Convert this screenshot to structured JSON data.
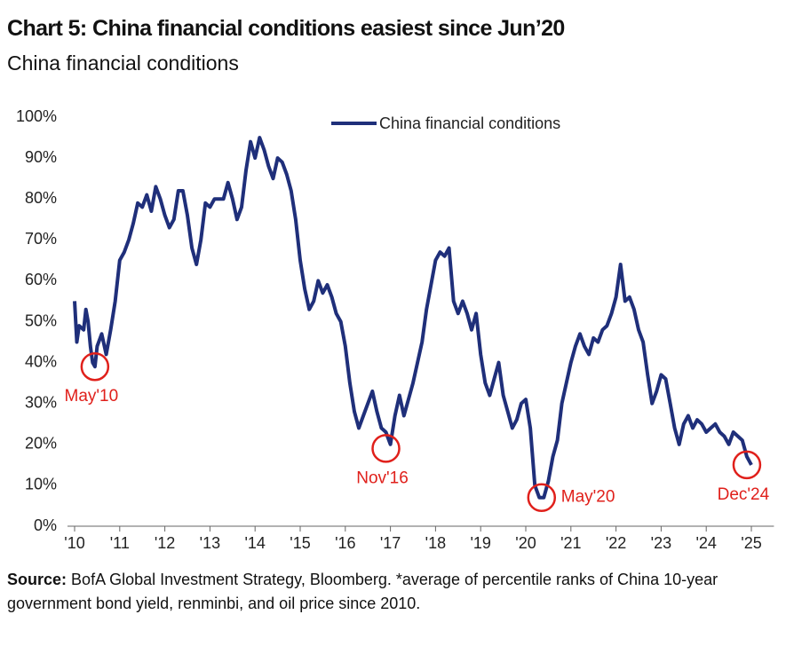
{
  "chart_data": {
    "type": "line",
    "title": "Chart 5: China financial conditions easiest since Jun’20",
    "subtitle": "China financial conditions",
    "x": [
      2010.0,
      2010.05,
      2010.1,
      2010.2,
      2010.25,
      2010.3,
      2010.35,
      2010.4,
      2010.45,
      2010.5,
      2010.6,
      2010.7,
      2010.8,
      2010.9,
      2011.0,
      2011.1,
      2011.2,
      2011.3,
      2011.4,
      2011.5,
      2011.6,
      2011.7,
      2011.8,
      2011.9,
      2012.0,
      2012.1,
      2012.2,
      2012.3,
      2012.4,
      2012.5,
      2012.6,
      2012.7,
      2012.8,
      2012.9,
      2013.0,
      2013.1,
      2013.3,
      2013.4,
      2013.5,
      2013.6,
      2013.7,
      2013.8,
      2013.9,
      2014.0,
      2014.1,
      2014.2,
      2014.3,
      2014.4,
      2014.5,
      2014.6,
      2014.7,
      2014.8,
      2014.9,
      2015.0,
      2015.1,
      2015.2,
      2015.3,
      2015.4,
      2015.5,
      2015.6,
      2015.7,
      2015.8,
      2015.9,
      2016.0,
      2016.1,
      2016.2,
      2016.3,
      2016.4,
      2016.5,
      2016.6,
      2016.7,
      2016.8,
      2016.9,
      2017.0,
      2017.1,
      2017.2,
      2017.3,
      2017.4,
      2017.5,
      2017.6,
      2017.7,
      2017.8,
      2017.9,
      2018.0,
      2018.1,
      2018.2,
      2018.3,
      2018.4,
      2018.5,
      2018.6,
      2018.7,
      2018.8,
      2018.9,
      2019.0,
      2019.1,
      2019.2,
      2019.3,
      2019.4,
      2019.5,
      2019.6,
      2019.7,
      2019.8,
      2019.9,
      2020.0,
      2020.1,
      2020.2,
      2020.3,
      2020.4,
      2020.5,
      2020.6,
      2020.7,
      2020.8,
      2020.9,
      2021.0,
      2021.1,
      2021.2,
      2021.3,
      2021.4,
      2021.5,
      2021.6,
      2021.7,
      2021.8,
      2021.9,
      2022.0,
      2022.1,
      2022.2,
      2022.3,
      2022.4,
      2022.5,
      2022.6,
      2022.7,
      2022.8,
      2022.9,
      2023.0,
      2023.1,
      2023.2,
      2023.3,
      2023.4,
      2023.5,
      2023.6,
      2023.7,
      2023.8,
      2023.9,
      2024.0,
      2024.1,
      2024.2,
      2024.3,
      2024.4,
      2024.5,
      2024.6,
      2024.7,
      2024.8,
      2024.9,
      2025.0
    ],
    "series": [
      {
        "name": "China financial conditions",
        "color": "#1f2f7a",
        "values": [
          55,
          45,
          49,
          48,
          53,
          50,
          44,
          40,
          39,
          44,
          47,
          42,
          48,
          55,
          65,
          67,
          70,
          74,
          79,
          78,
          81,
          77,
          83,
          80,
          76,
          73,
          75,
          82,
          82,
          76,
          68,
          64,
          70,
          79,
          78,
          80,
          80,
          84,
          80,
          75,
          78,
          87,
          94,
          90,
          95,
          92,
          88,
          85,
          90,
          89,
          86,
          82,
          75,
          65,
          58,
          53,
          55,
          60,
          57,
          59,
          56,
          52,
          50,
          44,
          35,
          28,
          24,
          27,
          30,
          33,
          28,
          24,
          23,
          20,
          27,
          32,
          27,
          31,
          35,
          40,
          45,
          53,
          59,
          65,
          67,
          66,
          68,
          55,
          52,
          55,
          52,
          48,
          52,
          42,
          35,
          32,
          36,
          40,
          32,
          28,
          24,
          26,
          30,
          31,
          24,
          10,
          7,
          7,
          11,
          17,
          21,
          30,
          35,
          40,
          44,
          47,
          44,
          42,
          46,
          45,
          48,
          49,
          52,
          56,
          64,
          55,
          56,
          53,
          48,
          45,
          37,
          30,
          33,
          37,
          36,
          30,
          24,
          20,
          25,
          27,
          24,
          26,
          25,
          23,
          24,
          25,
          23,
          22,
          20,
          23,
          22,
          21,
          17,
          15
        ]
      }
    ],
    "xlim": [
      2010,
      2025.5
    ],
    "xticks": [
      {
        "value": 2010,
        "label": "'10"
      },
      {
        "value": 2011,
        "label": "'11"
      },
      {
        "value": 2012,
        "label": "'12"
      },
      {
        "value": 2013,
        "label": "'13"
      },
      {
        "value": 2014,
        "label": "'14"
      },
      {
        "value": 2015,
        "label": "'15"
      },
      {
        "value": 2016,
        "label": "'16"
      },
      {
        "value": 2017,
        "label": "'17"
      },
      {
        "value": 2018,
        "label": "'18"
      },
      {
        "value": 2019,
        "label": "'19"
      },
      {
        "value": 2020,
        "label": "'20"
      },
      {
        "value": 2021,
        "label": "'21"
      },
      {
        "value": 2022,
        "label": "'22"
      },
      {
        "value": 2023,
        "label": "'23"
      },
      {
        "value": 2024,
        "label": "'24"
      },
      {
        "value": 2025,
        "label": "'25"
      }
    ],
    "ylim": [
      0,
      100
    ],
    "yticks": [
      {
        "value": 0,
        "label": "0%"
      },
      {
        "value": 10,
        "label": "10%"
      },
      {
        "value": 20,
        "label": "20%"
      },
      {
        "value": 30,
        "label": "30%"
      },
      {
        "value": 40,
        "label": "40%"
      },
      {
        "value": 50,
        "label": "50%"
      },
      {
        "value": 60,
        "label": "60%"
      },
      {
        "value": 70,
        "label": "70%"
      },
      {
        "value": 80,
        "label": "80%"
      },
      {
        "value": 90,
        "label": "90%"
      },
      {
        "value": 100,
        "label": "100%"
      }
    ],
    "grid": false,
    "legend": "top",
    "annotations": [
      {
        "label": "May'10",
        "x": 2010.45,
        "y": 39,
        "color": "#e0201b",
        "side": "below"
      },
      {
        "label": "Nov'16",
        "x": 2016.9,
        "y": 19,
        "color": "#e0201b",
        "side": "below"
      },
      {
        "label": "May'20",
        "x": 2020.35,
        "y": 7,
        "color": "#e0201b",
        "side": "right"
      },
      {
        "label": "Dec'24",
        "x": 2024.9,
        "y": 15,
        "color": "#e0201b",
        "side": "below"
      }
    ],
    "source_label": "Source:",
    "source_text": "BofA Global Investment Strategy, Bloomberg. *average of percentile ranks of China 10-year government bond yield, renminbi, and oil price since 2010."
  }
}
